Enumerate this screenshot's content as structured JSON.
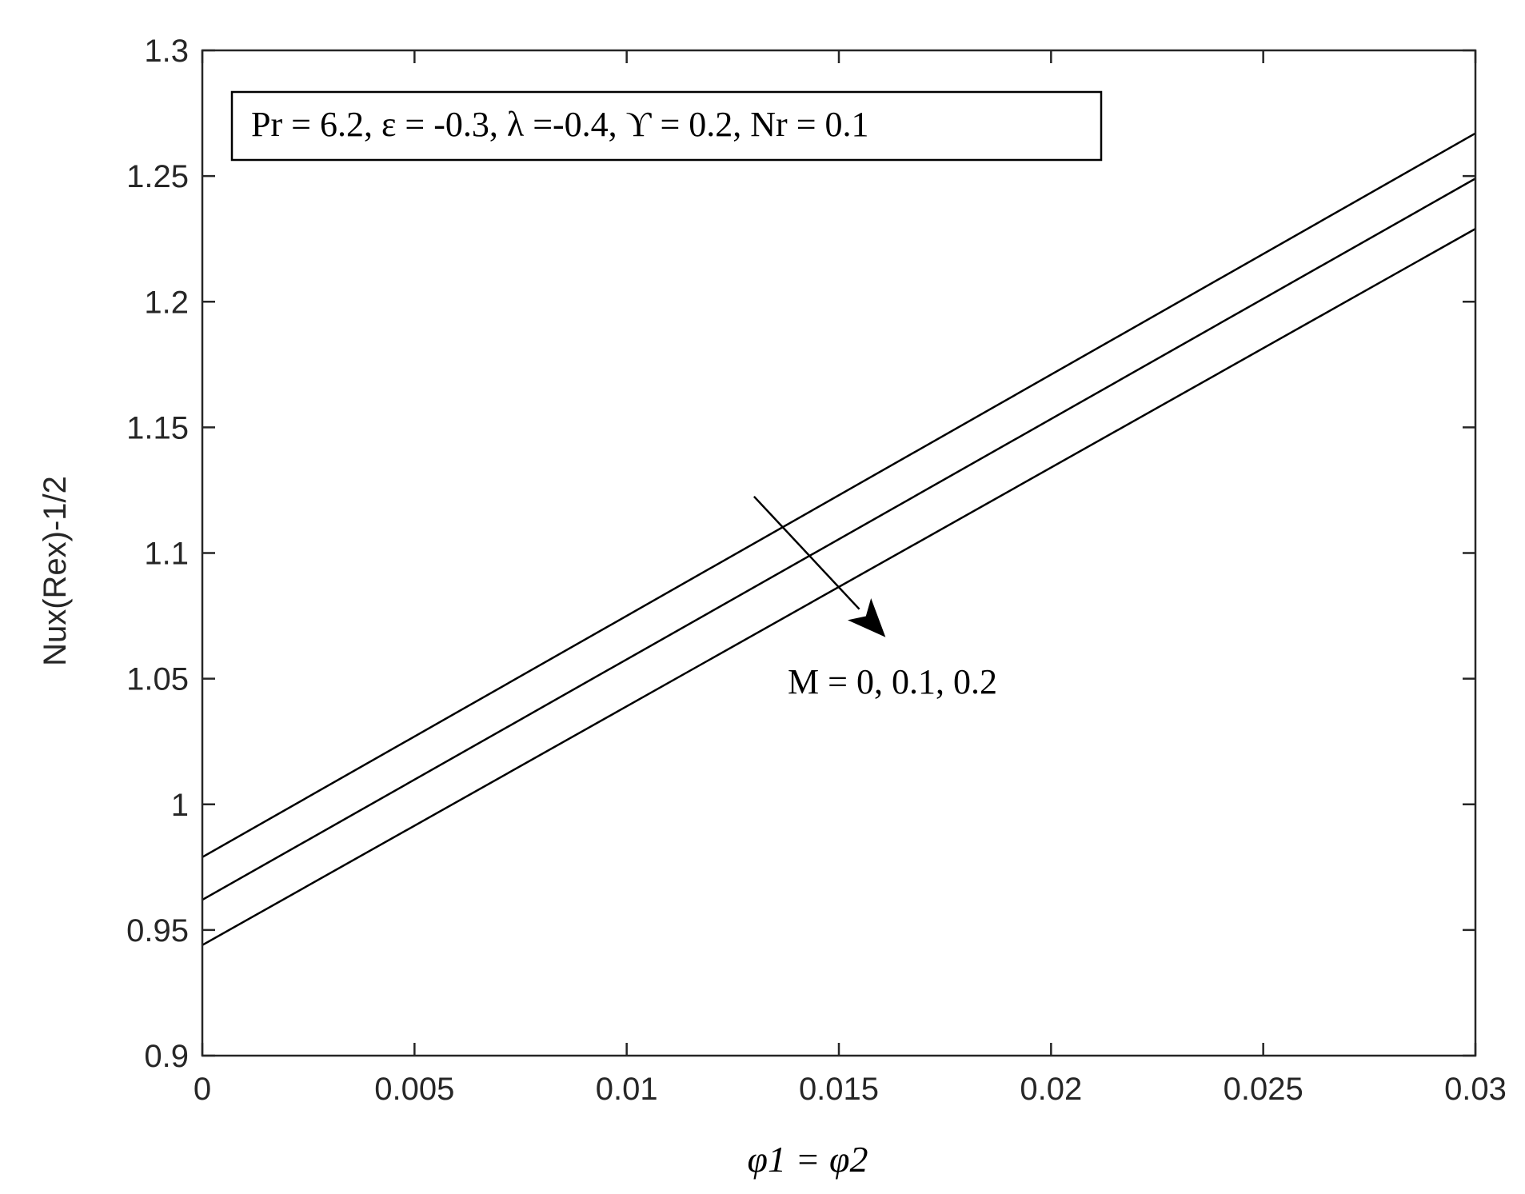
{
  "chart_data": {
    "type": "line",
    "xlabel": "φ1 = φ2",
    "ylabel": "Nux(Rex)-1/2",
    "xlim": [
      0,
      0.03
    ],
    "ylim": [
      0.9,
      1.3
    ],
    "x_ticks": [
      0,
      0.005,
      0.01,
      0.015,
      0.02,
      0.025,
      0.03
    ],
    "x_tick_labels": [
      "0",
      "0.005",
      "0.01",
      "0.015",
      "0.02",
      "0.025",
      "0.03"
    ],
    "y_ticks": [
      0.9,
      0.95,
      1.0,
      1.05,
      1.1,
      1.15,
      1.2,
      1.25,
      1.3
    ],
    "y_tick_labels": [
      "0.9",
      "0.95",
      "1",
      "1.05",
      "1.1",
      "1.15",
      "1.2",
      "1.25",
      "1.3"
    ],
    "grid": false,
    "legend_box": "Pr = 6.2, ε = -0.3, λ =-0.4, ϒ = 0.2, Nr = 0.1",
    "annotation": "M = 0, 0.1, 0.2",
    "series": [
      {
        "x": [
          0,
          0.03
        ],
        "y": [
          0.979,
          1.267
        ]
      },
      {
        "x": [
          0,
          0.03
        ],
        "y": [
          0.962,
          1.249
        ]
      },
      {
        "x": [
          0,
          0.03
        ],
        "y": [
          0.944,
          1.229
        ]
      }
    ],
    "arrow": {
      "from": [
        0.013,
        1.1225
      ],
      "to": [
        0.0161,
        1.0665
      ]
    },
    "colors": {
      "line": "#000000",
      "axis": "#262626",
      "background": "#ffffff"
    }
  }
}
